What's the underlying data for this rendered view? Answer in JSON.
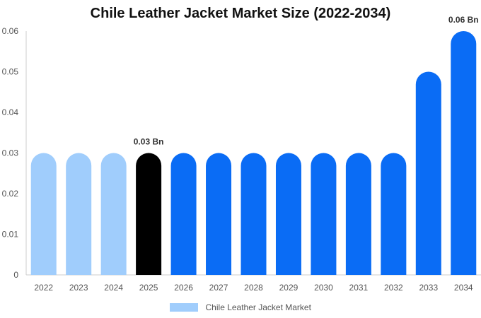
{
  "chart_data": {
    "type": "bar",
    "title": "Chile Leather Jacket Market Size (2022-2034)",
    "categories": [
      "2022",
      "2023",
      "2024",
      "2025",
      "2026",
      "2027",
      "2028",
      "2029",
      "2030",
      "2031",
      "2032",
      "2033",
      "2034"
    ],
    "series": [
      {
        "name": "Chile Leather Jacket Market",
        "values": [
          0.03,
          0.03,
          0.03,
          0.03,
          0.03,
          0.03,
          0.03,
          0.03,
          0.03,
          0.03,
          0.03,
          0.05,
          0.06
        ]
      }
    ],
    "ylim": [
      0,
      0.06
    ],
    "yticks": [
      "0",
      "0.01",
      "0.02",
      "0.03",
      "0.04",
      "0.05",
      "0.06"
    ],
    "data_labels": [
      {
        "category": "2025",
        "text": "0.03 Bn"
      },
      {
        "category": "2034",
        "text": "0.06 Bn"
      }
    ],
    "bar_colors": {
      "historical": "#a0cdfc",
      "current": "#000000",
      "forecast": "#0a6cf5"
    },
    "bar_color_groups": [
      "historical",
      "historical",
      "historical",
      "current",
      "forecast",
      "forecast",
      "forecast",
      "forecast",
      "forecast",
      "forecast",
      "forecast",
      "forecast",
      "forecast"
    ],
    "legend": {
      "label": "Chile Leather Jacket Market",
      "color": "#a0cdfc",
      "position": "bottom"
    },
    "grid": false
  }
}
